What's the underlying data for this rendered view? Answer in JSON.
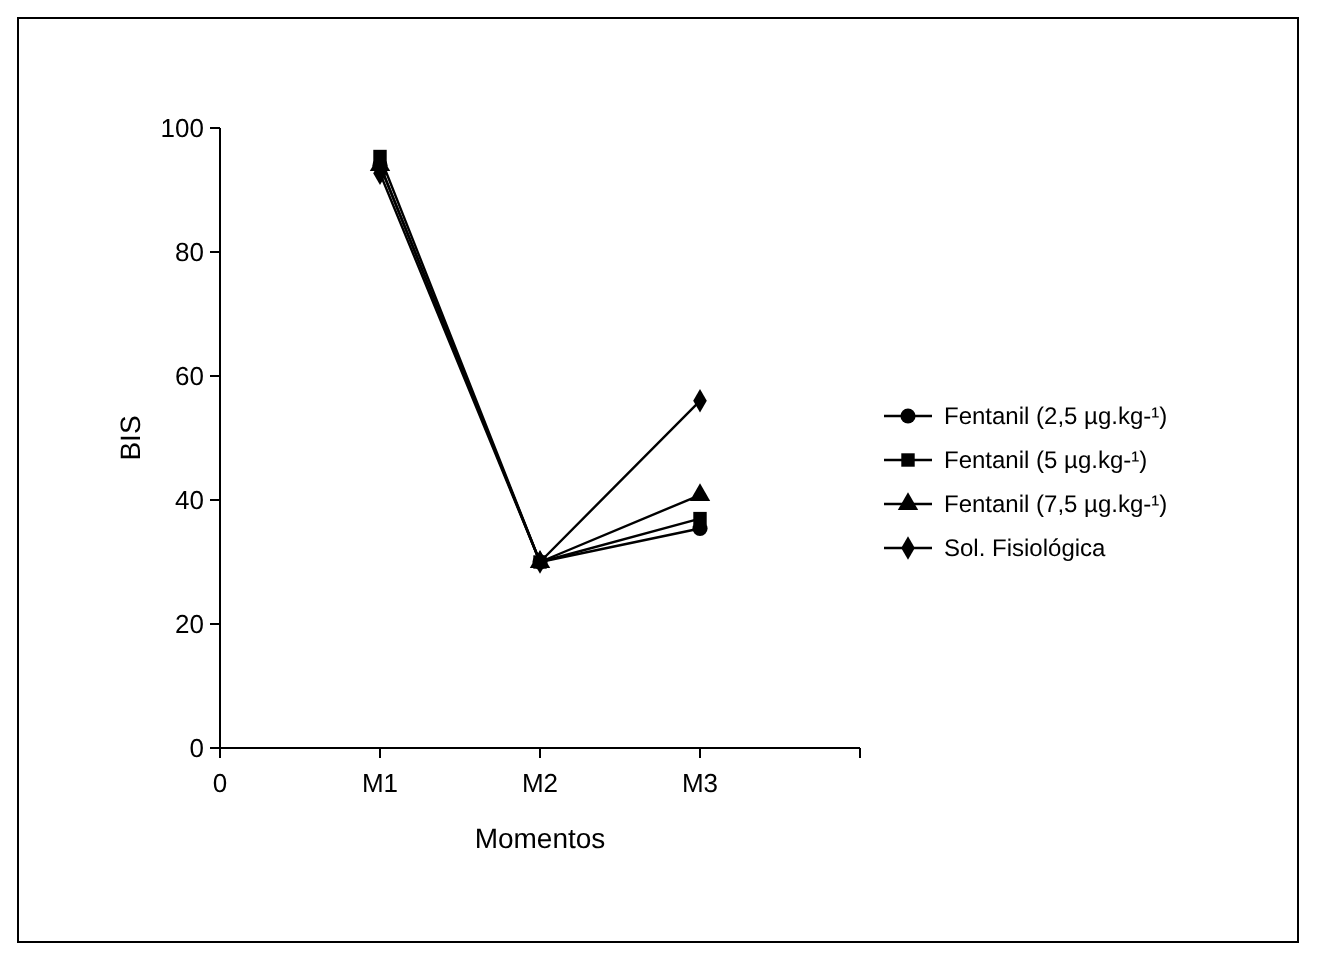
{
  "chart_data": {
    "type": "line",
    "xlabel": "Momentos",
    "ylabel": "BIS",
    "categories": [
      "0",
      "M1",
      "M2",
      "M3",
      null
    ],
    "ylim": [
      0,
      100
    ],
    "yticks": [
      0,
      20,
      40,
      60,
      80,
      100
    ],
    "grid": false,
    "legend": "right",
    "line_style": "solid",
    "series": [
      {
        "name": "Fentanil (2,5 µg.kg-¹)",
        "color": "#000000",
        "marker": "circle",
        "values": [
          null,
          94,
          30,
          35.4,
          null
        ]
      },
      {
        "name": "Fentanil (5 µg.kg-¹)",
        "color": "#000000",
        "marker": "square",
        "values": [
          null,
          95.4,
          30,
          37,
          null
        ]
      },
      {
        "name": "Fentanil (7,5 µg.kg-¹)",
        "color": "#000000",
        "marker": "triangle",
        "values": [
          null,
          94,
          30,
          40.8,
          null
        ]
      },
      {
        "name": "Sol. Fisiológica",
        "color": "#000000",
        "marker": "diamond",
        "values": [
          null,
          92.7,
          30,
          56,
          null
        ]
      }
    ]
  }
}
